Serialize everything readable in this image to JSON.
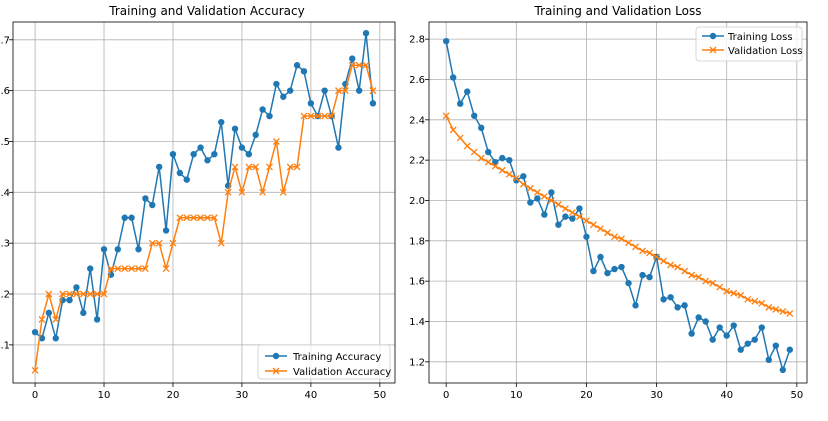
{
  "colors": {
    "series1": "#1f77b4",
    "series2": "#ff7f0e",
    "grid": "#b0b0b0"
  },
  "chart_data": [
    {
      "type": "line",
      "title": "Training and Validation Accuracy",
      "xlabel": "",
      "ylabel": "",
      "xlim": [
        -3.2,
        52.2
      ],
      "ylim": [
        0.025,
        0.735
      ],
      "xticks": [
        0,
        10,
        20,
        30,
        40,
        50
      ],
      "xtick_labels": [
        "0",
        "10",
        "20",
        "30",
        "40",
        "50"
      ],
      "yticks": [
        0.1,
        0.2,
        0.3,
        0.4,
        0.5,
        0.6,
        0.7
      ],
      "ytick_labels": [
        ".1",
        ".2",
        ".3",
        ".4",
        ".5",
        ".6",
        ".7"
      ],
      "grid": true,
      "legend_position": "lower-right",
      "x": [
        0,
        1,
        2,
        3,
        4,
        5,
        6,
        7,
        8,
        9,
        10,
        11,
        12,
        13,
        14,
        15,
        16,
        17,
        18,
        19,
        20,
        21,
        22,
        23,
        24,
        25,
        26,
        27,
        28,
        29,
        30,
        31,
        32,
        33,
        34,
        35,
        36,
        37,
        38,
        39,
        40,
        41,
        42,
        43,
        44,
        45,
        46,
        47,
        48,
        49
      ],
      "series": [
        {
          "name": "Training Accuracy",
          "color": "#1f77b4",
          "marker": "circle",
          "values": [
            0.125,
            0.113,
            0.163,
            0.113,
            0.188,
            0.188,
            0.213,
            0.163,
            0.25,
            0.15,
            0.288,
            0.238,
            0.288,
            0.35,
            0.35,
            0.288,
            0.388,
            0.375,
            0.45,
            0.325,
            0.475,
            0.438,
            0.425,
            0.475,
            0.488,
            0.463,
            0.475,
            0.538,
            0.413,
            0.525,
            0.488,
            0.475,
            0.513,
            0.563,
            0.55,
            0.613,
            0.588,
            0.6,
            0.65,
            0.638,
            0.575,
            0.55,
            0.6,
            0.55,
            0.488,
            0.613,
            0.663,
            0.6,
            0.713,
            0.575
          ]
        },
        {
          "name": "Validation Accuracy",
          "color": "#ff7f0e",
          "marker": "x",
          "values": [
            0.05,
            0.15,
            0.2,
            0.15,
            0.2,
            0.2,
            0.2,
            0.2,
            0.2,
            0.2,
            0.2,
            0.25,
            0.25,
            0.25,
            0.25,
            0.25,
            0.25,
            0.3,
            0.3,
            0.25,
            0.3,
            0.35,
            0.35,
            0.35,
            0.35,
            0.35,
            0.35,
            0.3,
            0.4,
            0.45,
            0.4,
            0.45,
            0.45,
            0.4,
            0.45,
            0.5,
            0.4,
            0.45,
            0.45,
            0.55,
            0.55,
            0.55,
            0.55,
            0.55,
            0.6,
            0.6,
            0.65,
            0.65,
            0.65,
            0.6
          ]
        }
      ]
    },
    {
      "type": "line",
      "title": "Training and Validation Loss",
      "xlabel": "",
      "ylabel": "",
      "xlim": [
        -2.45,
        51.45
      ],
      "ylim": [
        1.095,
        2.885
      ],
      "xticks": [
        0,
        10,
        20,
        30,
        40,
        50
      ],
      "xtick_labels": [
        "0",
        "10",
        "20",
        "30",
        "40",
        "50"
      ],
      "yticks": [
        1.2,
        1.4,
        1.6,
        1.8,
        2.0,
        2.2,
        2.4,
        2.6,
        2.8
      ],
      "ytick_labels": [
        "1.2",
        "1.4",
        "1.6",
        "1.8",
        "2.0",
        "2.2",
        "2.4",
        "2.6",
        "2.8"
      ],
      "grid": true,
      "legend_position": "upper-right",
      "x": [
        0,
        1,
        2,
        3,
        4,
        5,
        6,
        7,
        8,
        9,
        10,
        11,
        12,
        13,
        14,
        15,
        16,
        17,
        18,
        19,
        20,
        21,
        22,
        23,
        24,
        25,
        26,
        27,
        28,
        29,
        30,
        31,
        32,
        33,
        34,
        35,
        36,
        37,
        38,
        39,
        40,
        41,
        42,
        43,
        44,
        45,
        46,
        47,
        48,
        49
      ],
      "series": [
        {
          "name": "Training Loss",
          "color": "#1f77b4",
          "marker": "circle",
          "values": [
            2.79,
            2.61,
            2.48,
            2.54,
            2.42,
            2.36,
            2.24,
            2.19,
            2.21,
            2.2,
            2.1,
            2.12,
            1.99,
            2.01,
            1.93,
            2.04,
            1.88,
            1.92,
            1.91,
            1.96,
            1.82,
            1.65,
            1.72,
            1.64,
            1.66,
            1.67,
            1.59,
            1.48,
            1.63,
            1.62,
            1.72,
            1.51,
            1.52,
            1.47,
            1.48,
            1.34,
            1.42,
            1.4,
            1.31,
            1.37,
            1.33,
            1.38,
            1.26,
            1.29,
            1.31,
            1.37,
            1.21,
            1.28,
            1.16,
            1.26
          ]
        },
        {
          "name": "Validation Loss",
          "color": "#ff7f0e",
          "marker": "x",
          "values": [
            2.42,
            2.35,
            2.31,
            2.27,
            2.24,
            2.21,
            2.19,
            2.17,
            2.15,
            2.13,
            2.11,
            2.08,
            2.06,
            2.04,
            2.02,
            2.0,
            1.98,
            1.96,
            1.94,
            1.92,
            1.9,
            1.88,
            1.86,
            1.84,
            1.82,
            1.81,
            1.79,
            1.77,
            1.75,
            1.74,
            1.72,
            1.7,
            1.68,
            1.67,
            1.65,
            1.63,
            1.62,
            1.6,
            1.59,
            1.57,
            1.55,
            1.54,
            1.53,
            1.51,
            1.5,
            1.49,
            1.47,
            1.46,
            1.45,
            1.44
          ]
        }
      ]
    }
  ]
}
